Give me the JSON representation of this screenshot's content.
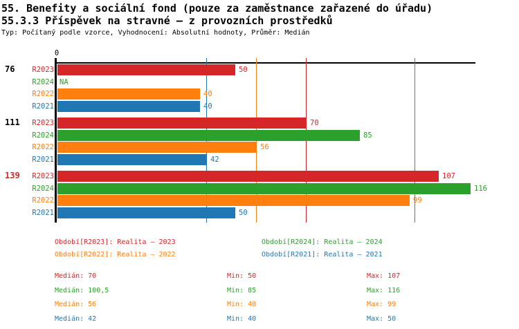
{
  "header": {
    "title_line1": "55. Benefity a sociální fond (pouze za zaměstnance zařazené do úřadu)",
    "title_line2": "55.3.3 Příspěvek na stravné – z provozních prostředků",
    "meta_line": "Typ: Počítaný podle vzorce, Vyhodnocení: Absolutní hodnoty, Průměr: Medián"
  },
  "colors": {
    "R2023": "#d62728",
    "R2024": "#2ca02c",
    "R2022": "#ff7f0e",
    "R2021": "#1f77b4",
    "axis": "#000000",
    "group_label_default": "#000000",
    "group_label_highlight": "#d62728"
  },
  "chart_data": {
    "type": "bar",
    "orientation": "horizontal",
    "title": "55.3.3 Příspěvek na stravné – z provozních prostředků",
    "x_origin_label": "0",
    "xlim": [
      0,
      117
    ],
    "grid": "median-lines-only",
    "legend_position": "bottom",
    "series_order": [
      "R2023",
      "R2024",
      "R2022",
      "R2021"
    ],
    "series_colors": {
      "R2023": "#d62728",
      "R2024": "#2ca02c",
      "R2022": "#ff7f0e",
      "R2021": "#1f77b4"
    },
    "groups": [
      {
        "label": "76",
        "label_color": "#000000",
        "bars": [
          {
            "series": "R2023",
            "value": 50,
            "label": "50"
          },
          {
            "series": "R2024",
            "value": null,
            "label": "NA"
          },
          {
            "series": "R2022",
            "value": 40,
            "label": "40"
          },
          {
            "series": "R2021",
            "value": 40,
            "label": "40"
          }
        ]
      },
      {
        "label": "111",
        "label_color": "#000000",
        "bars": [
          {
            "series": "R2023",
            "value": 70,
            "label": "70"
          },
          {
            "series": "R2024",
            "value": 85,
            "label": "85"
          },
          {
            "series": "R2022",
            "value": 56,
            "label": "56"
          },
          {
            "series": "R2021",
            "value": 42,
            "label": "42"
          }
        ]
      },
      {
        "label": "139",
        "label_color": "#d62728",
        "bars": [
          {
            "series": "R2023",
            "value": 107,
            "label": "107"
          },
          {
            "series": "R2024",
            "value": 116,
            "label": "116"
          },
          {
            "series": "R2022",
            "value": 99,
            "label": "99"
          },
          {
            "series": "R2021",
            "value": 50,
            "label": "50"
          }
        ]
      }
    ],
    "median_lines": [
      {
        "series": "R2021",
        "value": 42
      },
      {
        "series": "R2022",
        "value": 56
      },
      {
        "series": "R2023",
        "value": 70
      },
      {
        "series": "R2024",
        "value": 100.5
      }
    ]
  },
  "legend": {
    "items": [
      {
        "text": "Období[R2023]: Realita – 2023",
        "series": "R2023",
        "color": "#d62728",
        "col": 0,
        "row": 0
      },
      {
        "text": "Období[R2024]: Realita – 2024",
        "series": "R2024",
        "color": "#2ca02c",
        "col": 1,
        "row": 0
      },
      {
        "text": "Období[R2022]: Realita – 2022",
        "series": "R2022",
        "color": "#ff7f0e",
        "col": 0,
        "row": 1
      },
      {
        "text": "Období[R2021]: Realita – 2021",
        "series": "R2021",
        "color": "#1f77b4",
        "col": 1,
        "row": 1
      }
    ]
  },
  "stats": {
    "rows": [
      {
        "series": "R2023",
        "color": "#d62728",
        "median": "Medián: 70",
        "min": "Min: 50",
        "max": "Max: 107"
      },
      {
        "series": "R2024",
        "color": "#2ca02c",
        "median": "Medián: 100,5",
        "min": "Min: 85",
        "max": "Max: 116"
      },
      {
        "series": "R2022",
        "color": "#ff7f0e",
        "median": "Medián: 56",
        "min": "Min: 40",
        "max": "Max: 99"
      },
      {
        "series": "R2021",
        "color": "#1f77b4",
        "median": "Medián: 42",
        "min": "Min: 40",
        "max": "Max: 50"
      }
    ]
  }
}
